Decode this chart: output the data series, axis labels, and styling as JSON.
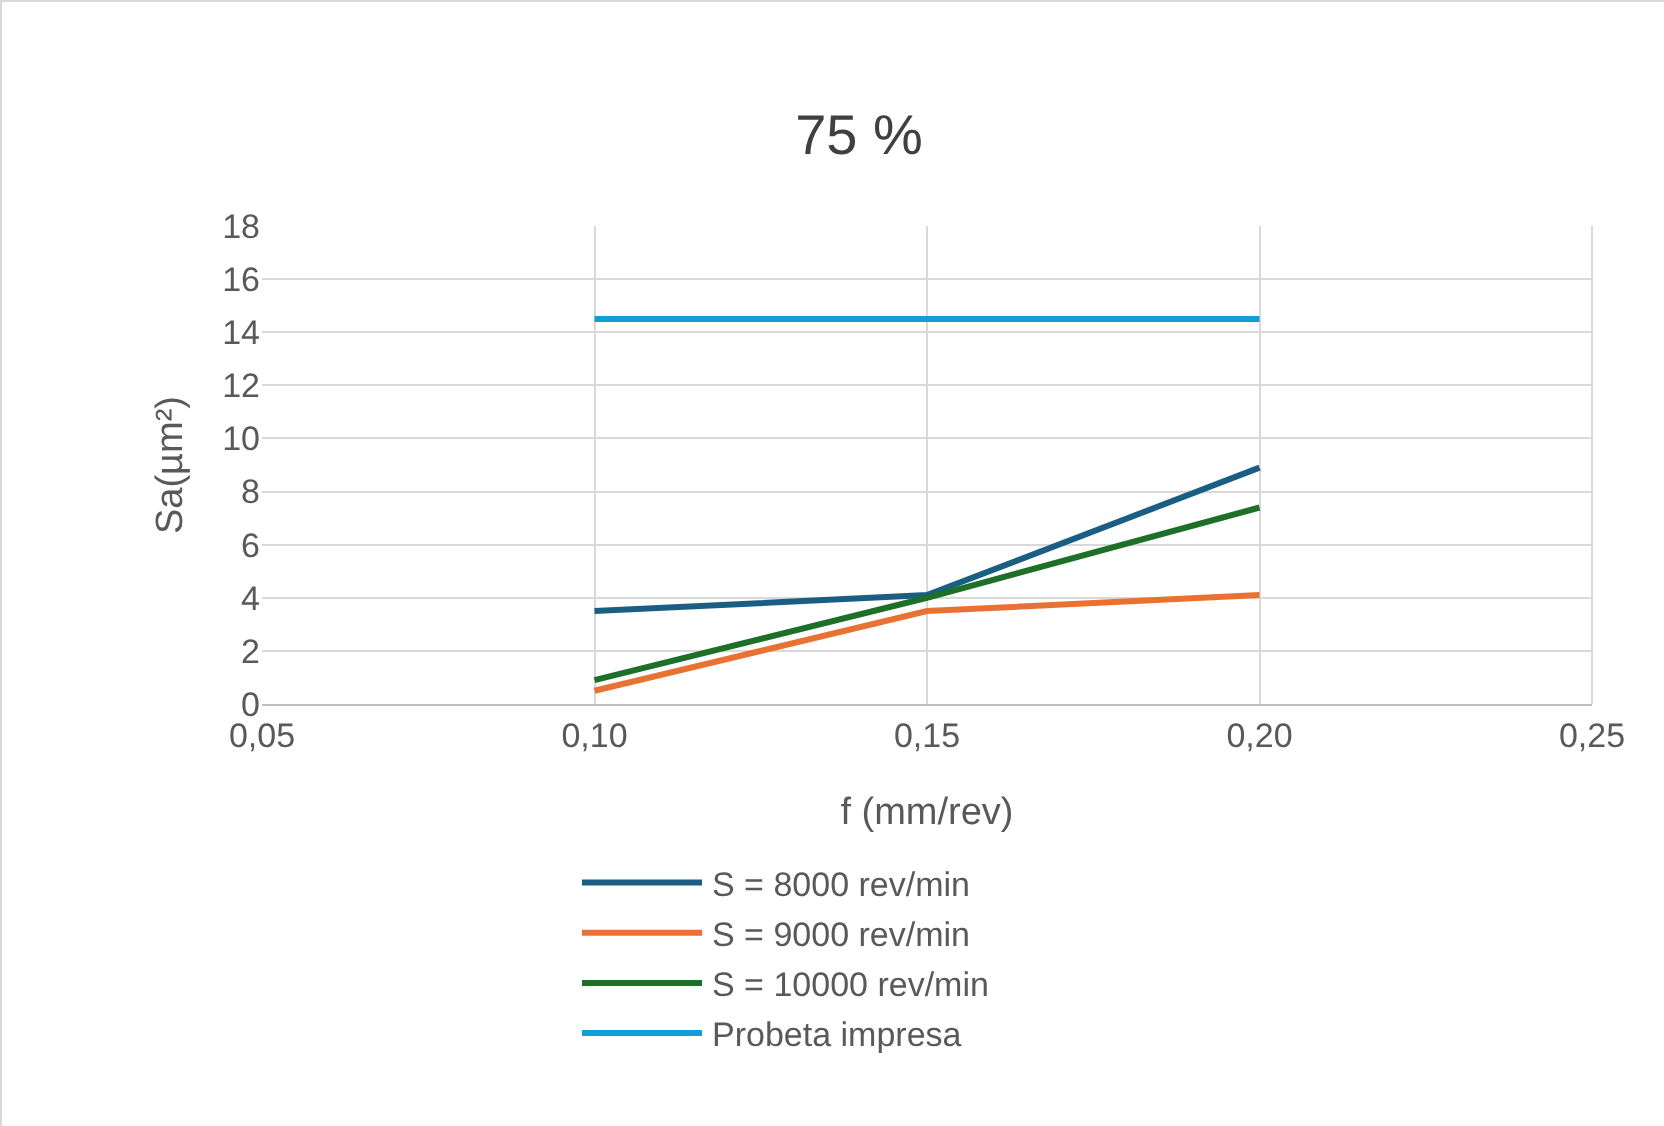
{
  "chart_data": {
    "type": "line",
    "title": "75 %",
    "xlabel": "f (mm/rev)",
    "ylabel": "Sa(µm²)",
    "x": [
      0.1,
      0.15,
      0.2
    ],
    "series": [
      {
        "name": "S = 8000 rev/min",
        "color": "#1b5e83",
        "values": [
          3.5,
          4.1,
          8.9
        ]
      },
      {
        "name": "S = 9000 rev/min",
        "color": "#e97132",
        "values": [
          0.5,
          3.5,
          4.1
        ]
      },
      {
        "name": "S = 10000 rev/min",
        "color": "#1e6f27",
        "values": [
          0.9,
          4.0,
          7.4
        ]
      },
      {
        "name": "Probeta impresa",
        "color": "#0f9ed5",
        "values": [
          14.5,
          14.5,
          14.5
        ]
      }
    ],
    "xlim": [
      0.05,
      0.25
    ],
    "xticks": [
      {
        "value": 0.05,
        "label": "0,05"
      },
      {
        "value": 0.1,
        "label": "0,10"
      },
      {
        "value": 0.15,
        "label": "0,15"
      },
      {
        "value": 0.2,
        "label": "0,20"
      },
      {
        "value": 0.25,
        "label": "0,25"
      }
    ],
    "ylim": [
      0,
      18
    ],
    "yticks": [
      0,
      2,
      4,
      6,
      8,
      10,
      12,
      14,
      16,
      18
    ],
    "grid": true,
    "legend": "bottom",
    "marker": "none",
    "line_style": "solid"
  }
}
